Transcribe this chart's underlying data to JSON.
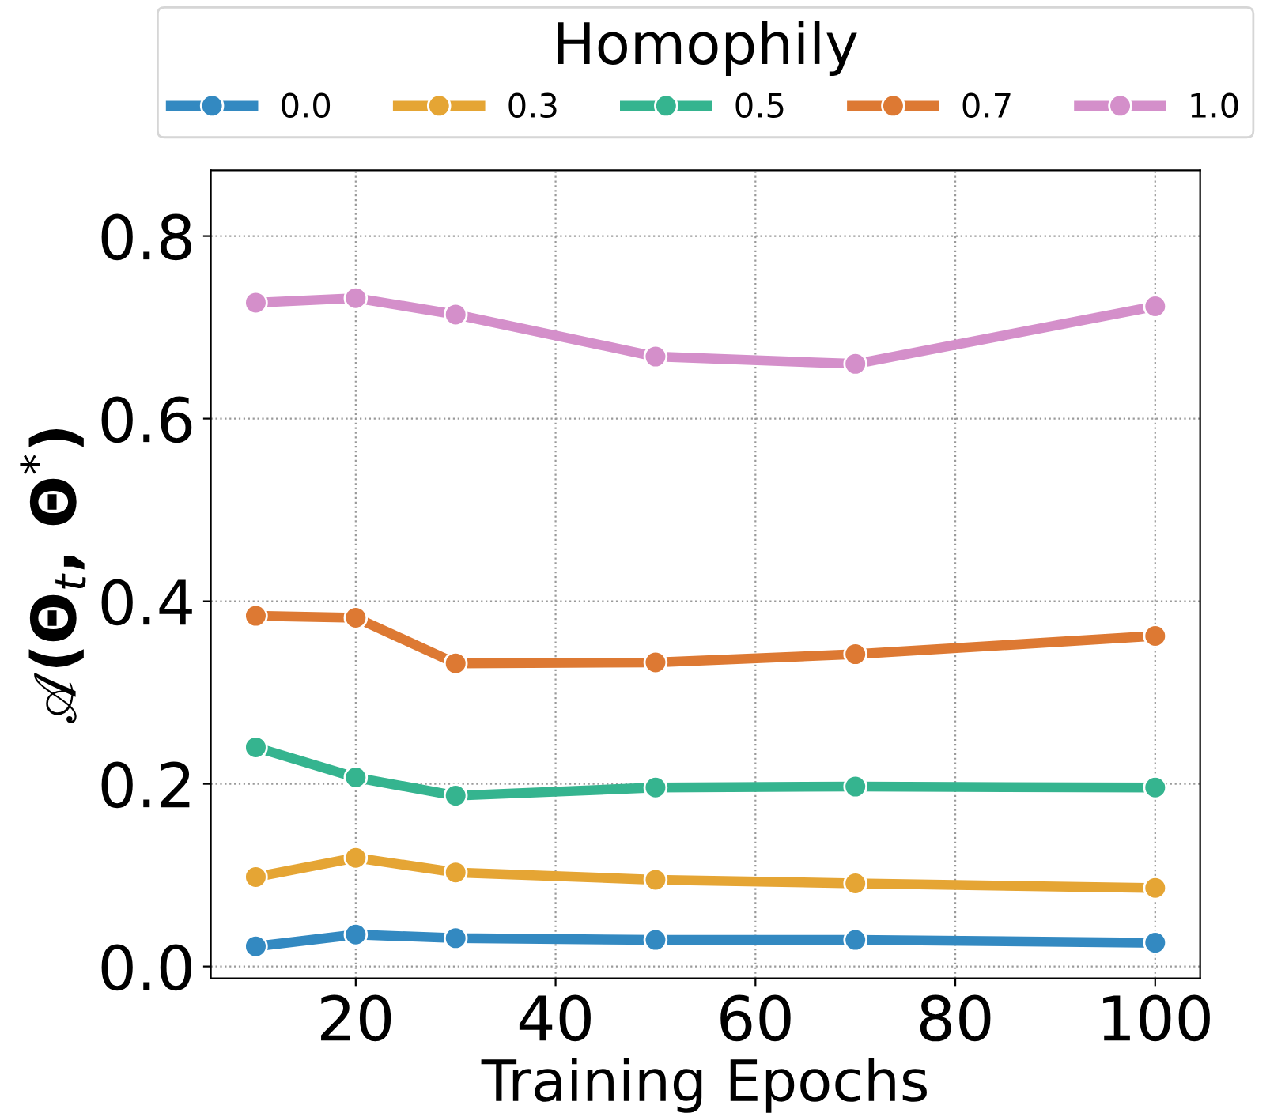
{
  "chart_data": {
    "type": "line",
    "xlabel": "Training Epochs",
    "ylabel": "𝒜(Θ$_{t}$, Θ$^{*}$)",
    "legend_title": "Homophily",
    "legend": "top",
    "grid": true,
    "marker": "circle",
    "line_style": "solid",
    "x": [
      10,
      20,
      30,
      50,
      70,
      100
    ],
    "xlim": [
      5.5,
      104.5
    ],
    "xticks": [
      20,
      40,
      60,
      80,
      100
    ],
    "ylim": [
      -0.013,
      0.872
    ],
    "yticks": [
      {
        "value": 0,
        "label": "0.0"
      },
      0.2,
      0.4,
      0.6,
      0.8
    ],
    "series": [
      {
        "name": "0.0",
        "color": "#3389c1",
        "values": [
          0.022,
          0.035,
          0.031,
          0.029,
          0.029,
          0.026
        ]
      },
      {
        "name": "0.3",
        "color": "#e5a534",
        "values": [
          0.098,
          0.119,
          0.103,
          0.095,
          0.091,
          0.086
        ]
      },
      {
        "name": "0.5",
        "color": "#35b48f",
        "values": [
          0.24,
          0.207,
          0.187,
          0.196,
          0.197,
          0.196
        ]
      },
      {
        "name": "0.7",
        "color": "#dd7933",
        "values": [
          0.384,
          0.382,
          0.332,
          0.333,
          0.342,
          0.362
        ]
      },
      {
        "name": "1.0",
        "color": "#d48fca",
        "values": [
          0.727,
          0.732,
          0.714,
          0.668,
          0.66,
          0.723
        ]
      }
    ]
  }
}
